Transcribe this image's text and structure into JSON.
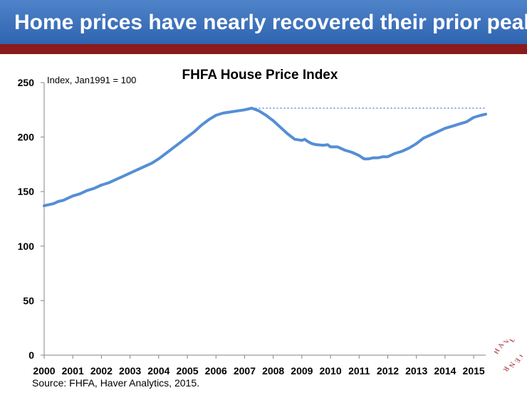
{
  "header": {
    "title": "Home prices have nearly recovered their prior peak"
  },
  "footer": {
    "source": "Source: FHFA, Haver Analytics, 2015."
  },
  "logo": {
    "text": "HAVERNET"
  },
  "colors": {
    "header_blue": "#3a70bd",
    "header_rule": "#8b1a1a",
    "series": "#558ed5",
    "logo": "#a8232b"
  },
  "chart_data": {
    "type": "line",
    "title": "FHFA House Price Index",
    "annotation": "Index, Jan1991 = 100",
    "xlabel": "",
    "ylabel": "",
    "xlim": [
      2000,
      2015.42
    ],
    "ylim": [
      0,
      250
    ],
    "yticks": [
      0,
      50,
      100,
      150,
      200,
      250
    ],
    "xticks": [
      "2000",
      "2001",
      "2002",
      "2003",
      "2004",
      "2005",
      "2006",
      "2007",
      "2008",
      "2009",
      "2010",
      "2011",
      "2012",
      "2013",
      "2014",
      "2015"
    ],
    "grid": false,
    "peak_reference_line": {
      "value": 226.5,
      "style": "dotted",
      "from": 2007.25
    },
    "series": [
      {
        "x": [
          2000.0,
          2000.17,
          2000.33,
          2000.5,
          2000.67,
          2000.83,
          2001.0,
          2001.25,
          2001.5,
          2001.75,
          2002.0,
          2002.25,
          2002.5,
          2002.75,
          2003.0,
          2003.25,
          2003.5,
          2003.75,
          2004.0,
          2004.25,
          2004.5,
          2004.75,
          2005.0,
          2005.25,
          2005.5,
          2005.75,
          2006.0,
          2006.25,
          2006.5,
          2006.75,
          2007.0,
          2007.25,
          2007.5,
          2007.75,
          2008.0,
          2008.25,
          2008.5,
          2008.75,
          2009.0,
          2009.1,
          2009.2,
          2009.35,
          2009.5,
          2009.75,
          2009.9,
          2010.0,
          2010.25,
          2010.5,
          2010.75,
          2011.0,
          2011.17,
          2011.33,
          2011.5,
          2011.67,
          2011.83,
          2012.0,
          2012.25,
          2012.5,
          2012.75,
          2013.0,
          2013.25,
          2013.5,
          2013.75,
          2014.0,
          2014.25,
          2014.5,
          2014.75,
          2015.0,
          2015.25,
          2015.42
        ],
        "y": [
          137,
          138,
          139,
          141,
          142,
          144,
          146,
          148,
          151,
          153,
          156,
          158,
          161,
          164,
          167,
          170,
          173,
          176,
          180,
          185,
          190,
          195,
          200,
          205,
          211,
          216,
          220,
          222,
          223,
          224,
          225,
          226.5,
          224,
          220,
          215,
          209,
          203,
          198,
          197,
          198,
          196,
          194,
          193,
          192.5,
          193,
          191,
          191,
          188,
          186,
          183,
          180,
          180,
          181,
          181,
          182,
          182,
          185,
          187,
          190,
          194,
          199,
          202,
          205,
          208,
          210,
          212,
          214,
          218,
          220,
          221
        ]
      }
    ]
  }
}
